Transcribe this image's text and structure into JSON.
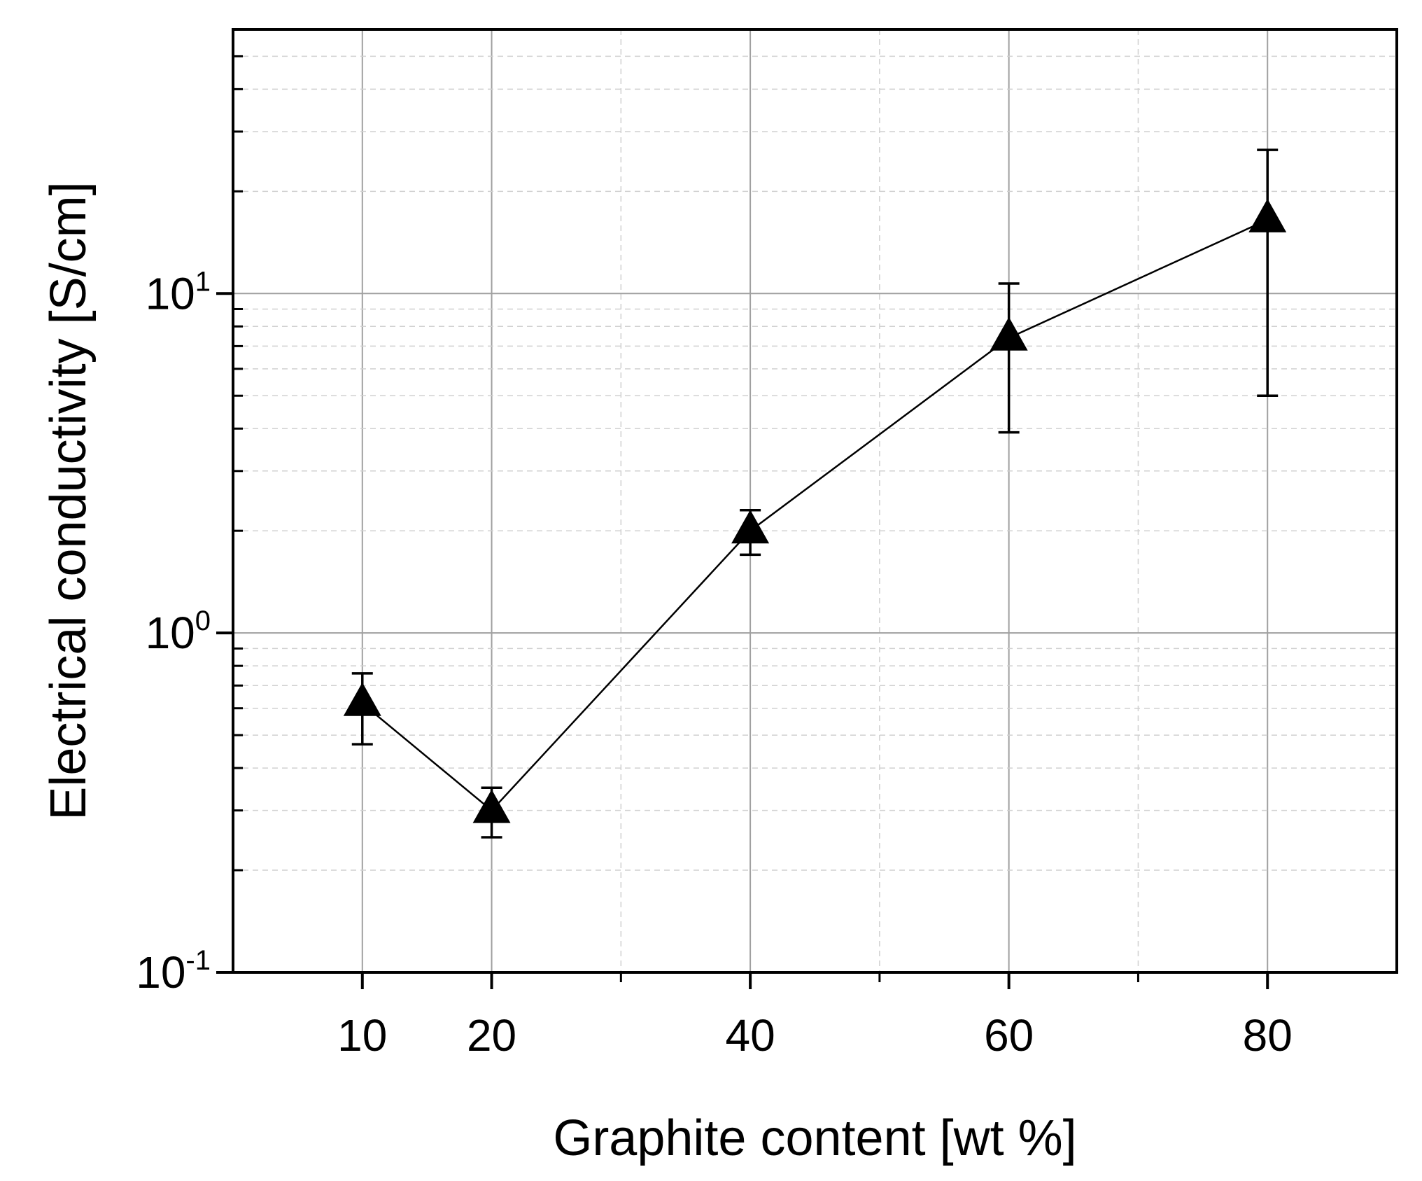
{
  "chart_data": {
    "type": "line",
    "title": "",
    "xlabel": "Graphite content [wt %]",
    "ylabel": "Electrical conductivity [S/cm]",
    "xlim": [
      0,
      90
    ],
    "ylim": [
      0.1,
      60
    ],
    "y_scale": "log",
    "x_ticks": [
      10,
      20,
      40,
      60,
      80
    ],
    "x_tick_labels": [
      "10",
      "20",
      "40",
      "60",
      "80"
    ],
    "y_ticks": [
      {
        "value": 0.1,
        "base": "10",
        "exp": "-1"
      },
      {
        "value": 1,
        "base": "10",
        "exp": "0"
      },
      {
        "value": 10,
        "base": "10",
        "exp": "1"
      }
    ],
    "grid": {
      "major": true,
      "minor": true
    },
    "marker": "filled-triangle",
    "color": "#000000",
    "series": [
      {
        "x": [
          10,
          20,
          40,
          60,
          80
        ],
        "y": [
          0.62,
          0.3,
          2.0,
          7.4,
          16.5
        ],
        "y_err_low": [
          0.47,
          0.25,
          1.7,
          3.9,
          5.0
        ],
        "y_err_high": [
          0.76,
          0.35,
          2.3,
          10.7,
          26.5
        ]
      }
    ]
  }
}
